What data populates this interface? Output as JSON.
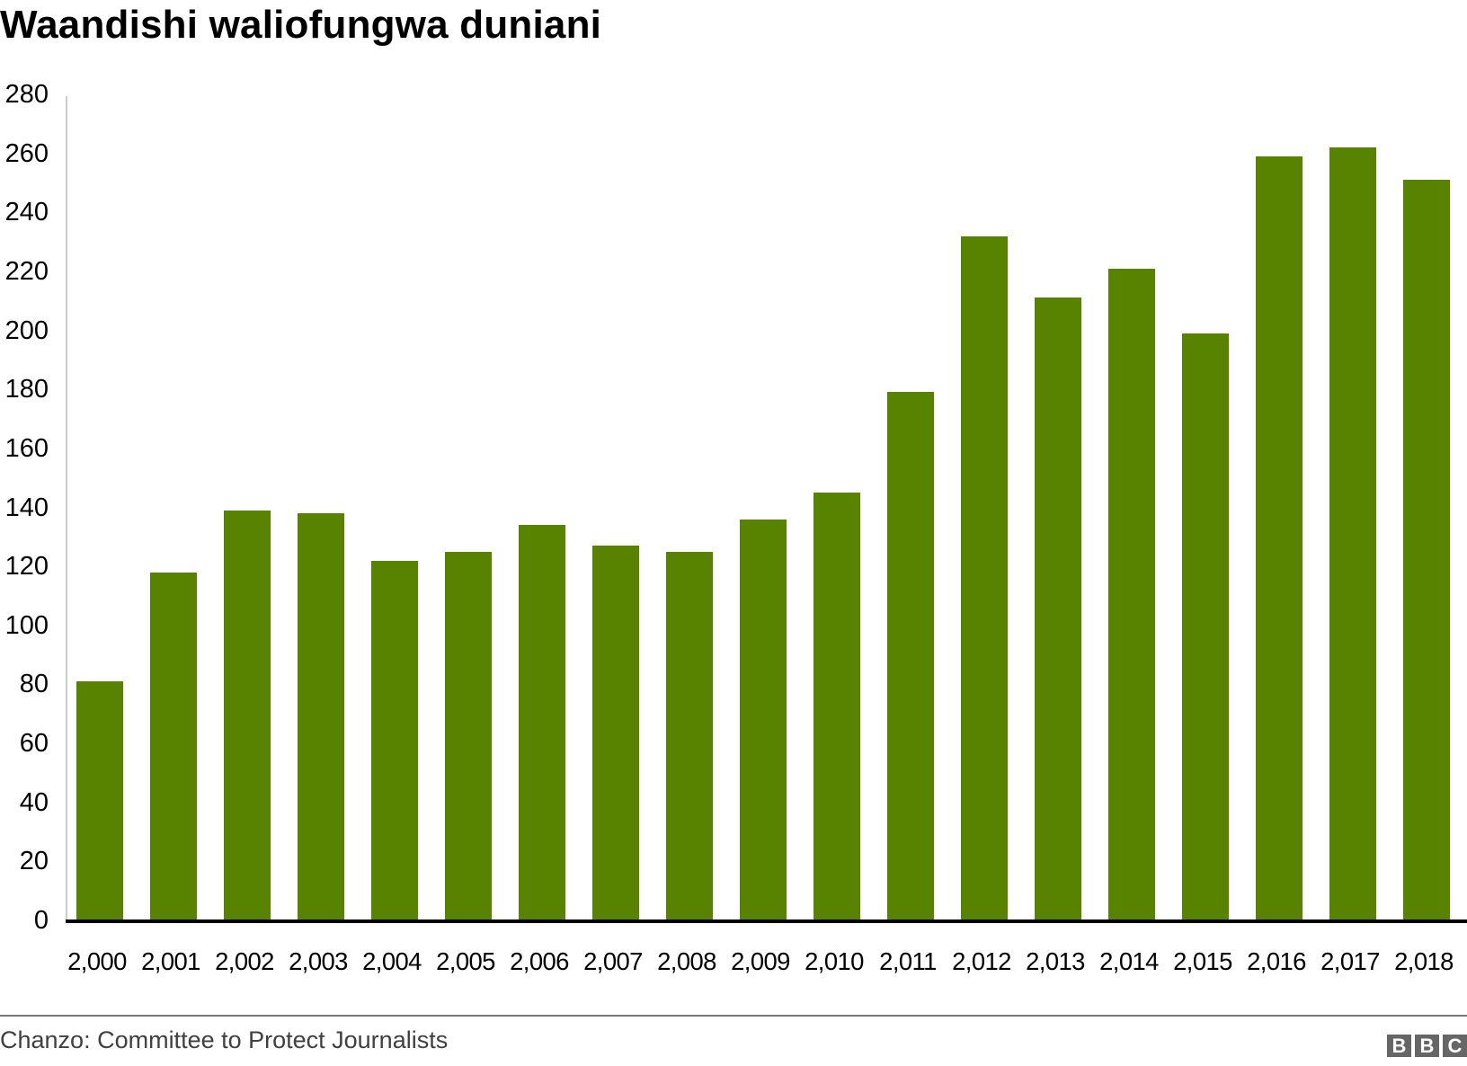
{
  "title": "Waandishi waliofungwa duniani",
  "source": "Chanzo: Committee to Protect Journalists",
  "logo": [
    "B",
    "B",
    "C"
  ],
  "colors": {
    "bar": "#588300",
    "axis": "#cccccc",
    "baseline": "#000000",
    "footer_line": "#777777",
    "source_text": "#404040",
    "logo_bg": "#666666"
  },
  "y_ticks": [
    "0",
    "20",
    "40",
    "60",
    "80",
    "100",
    "120",
    "140",
    "160",
    "180",
    "200",
    "220",
    "240",
    "260",
    "280"
  ],
  "x_ticks": [
    "2,000",
    "2,001",
    "2,002",
    "2,003",
    "2,004",
    "2,005",
    "2,006",
    "2,007",
    "2,008",
    "2,009",
    "2,010",
    "2,011",
    "2,012",
    "2,013",
    "2,014",
    "2,015",
    "2,016",
    "2,017",
    "2,018"
  ],
  "chart_data": {
    "type": "bar",
    "title": "Waandishi waliofungwa duniani",
    "xlabel": "",
    "ylabel": "",
    "categories": [
      "2,000",
      "2,001",
      "2,002",
      "2,003",
      "2,004",
      "2,005",
      "2,006",
      "2,007",
      "2,008",
      "2,009",
      "2,010",
      "2,011",
      "2,012",
      "2,013",
      "2,014",
      "2,015",
      "2,016",
      "2,017",
      "2,018"
    ],
    "values": [
      81,
      118,
      139,
      138,
      122,
      125,
      134,
      127,
      125,
      136,
      145,
      179,
      232,
      211,
      221,
      199,
      259,
      262,
      251
    ],
    "ylim": [
      0,
      280
    ],
    "yticks": [
      0,
      20,
      40,
      60,
      80,
      100,
      120,
      140,
      160,
      180,
      200,
      220,
      240,
      260,
      280
    ],
    "grid": false,
    "legend": null,
    "source": "Chanzo: Committee to Protect Journalists"
  }
}
